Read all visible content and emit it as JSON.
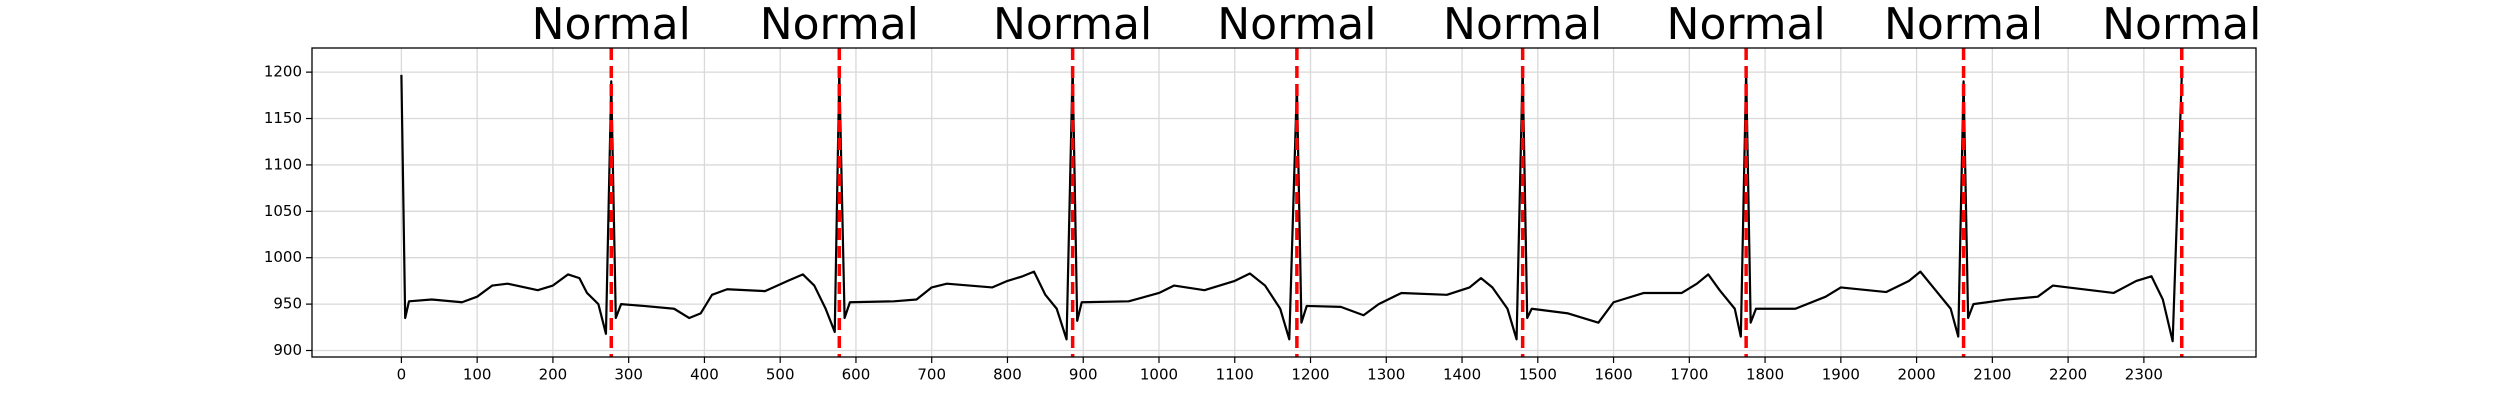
{
  "chart_data": {
    "type": "line",
    "x": [
      0,
      5,
      10,
      40,
      80,
      100,
      120,
      140,
      180,
      200,
      220,
      235,
      245,
      260,
      270,
      277,
      283,
      290,
      320,
      360,
      380,
      395,
      410,
      430,
      480,
      510,
      530,
      545,
      560,
      572,
      578,
      585,
      592,
      650,
      680,
      700,
      720,
      780,
      800,
      820,
      835,
      850,
      865,
      878,
      886,
      892,
      898,
      960,
      1000,
      1020,
      1060,
      1100,
      1120,
      1140,
      1160,
      1172,
      1182,
      1188,
      1195,
      1240,
      1270,
      1290,
      1320,
      1380,
      1410,
      1425,
      1440,
      1460,
      1472,
      1480,
      1486,
      1492,
      1540,
      1580,
      1600,
      1640,
      1690,
      1710,
      1725,
      1740,
      1760,
      1768,
      1775,
      1781,
      1788,
      1840,
      1880,
      1900,
      1960,
      1990,
      2005,
      2020,
      2045,
      2055,
      2062,
      2068,
      2075,
      2120,
      2160,
      2180,
      2200,
      2260,
      2290,
      2310,
      2325,
      2338,
      2350
    ],
    "values": [
      1197,
      935,
      953,
      955,
      952,
      958,
      970,
      972,
      965,
      970,
      982,
      978,
      962,
      950,
      918,
      1190,
      935,
      950,
      948,
      945,
      935,
      940,
      960,
      966,
      964,
      975,
      982,
      970,
      945,
      920,
      1200,
      935,
      952,
      953,
      955,
      968,
      972,
      968,
      975,
      980,
      985,
      960,
      945,
      912,
      1205,
      932,
      952,
      953,
      962,
      970,
      965,
      975,
      983,
      970,
      945,
      912,
      1185,
      930,
      948,
      947,
      938,
      950,
      962,
      960,
      968,
      978,
      968,
      945,
      912,
      1205,
      935,
      945,
      940,
      930,
      952,
      962,
      962,
      972,
      982,
      965,
      945,
      915,
      1200,
      930,
      945,
      945,
      958,
      968,
      963,
      975,
      985,
      970,
      945,
      915,
      1190,
      935,
      950,
      955,
      958,
      970,
      968,
      962,
      975,
      980,
      955,
      910,
      1195
    ],
    "color": "#000000",
    "annotations": [
      {
        "x": 277,
        "label": "Normal"
      },
      {
        "x": 578,
        "label": "Normal"
      },
      {
        "x": 886,
        "label": "Normal"
      },
      {
        "x": 1182,
        "label": "Normal"
      },
      {
        "x": 1480,
        "label": "Normal"
      },
      {
        "x": 1775,
        "label": "Normal"
      },
      {
        "x": 2062,
        "label": "Normal"
      },
      {
        "x": 2350,
        "label": "Normal"
      }
    ],
    "annotation_color": "#ff0000",
    "xlim": [
      -118,
      2448
    ],
    "ylim": [
      893,
      1226
    ],
    "xticks": [
      0,
      100,
      200,
      300,
      400,
      500,
      600,
      700,
      800,
      900,
      1000,
      1100,
      1200,
      1300,
      1400,
      1500,
      1600,
      1700,
      1800,
      1900,
      2000,
      2100,
      2200,
      2300
    ],
    "yticks": [
      900,
      950,
      1000,
      1050,
      1100,
      1150,
      1200
    ],
    "grid": true
  }
}
